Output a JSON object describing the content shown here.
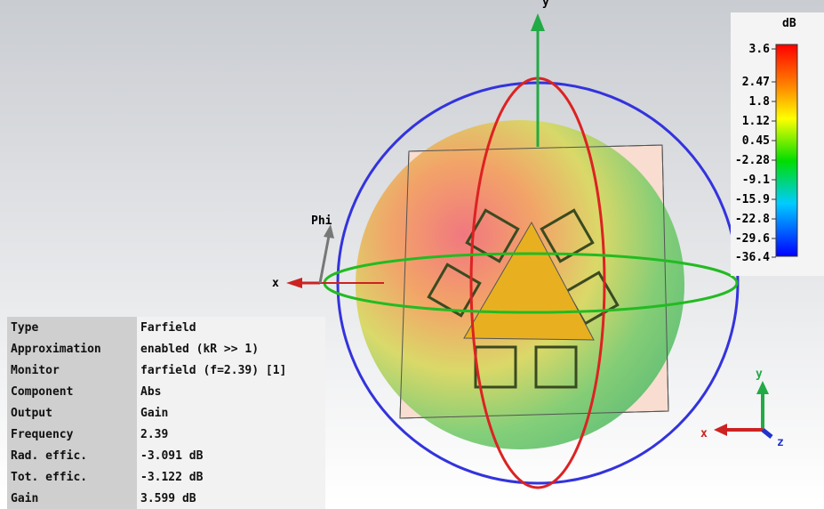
{
  "colorbar": {
    "unit": "dB",
    "labels": [
      "3.6",
      "2.47",
      "1.8",
      "1.12",
      "0.45",
      "-2.28",
      "-9.1",
      "-15.9",
      "-22.8",
      "-29.6",
      "-36.4"
    ]
  },
  "axes": {
    "phi": "Phi",
    "x": "x",
    "y": "y",
    "triad_x": "x",
    "triad_y": "y",
    "triad_z": "z"
  },
  "info": {
    "rows": [
      [
        "Type",
        "Farfield"
      ],
      [
        "Approximation",
        "enabled (kR >> 1)"
      ],
      [
        "Monitor",
        "farfield (f=2.39) [1]"
      ],
      [
        "Component",
        "Abs"
      ],
      [
        "Output",
        "Gain"
      ],
      [
        "Frequency",
        "2.39"
      ],
      [
        "Rad. effic.",
        "-3.091 dB"
      ],
      [
        "Tot. effic.",
        "-3.122 dB"
      ],
      [
        "Gain",
        "3.599 dB"
      ]
    ]
  }
}
